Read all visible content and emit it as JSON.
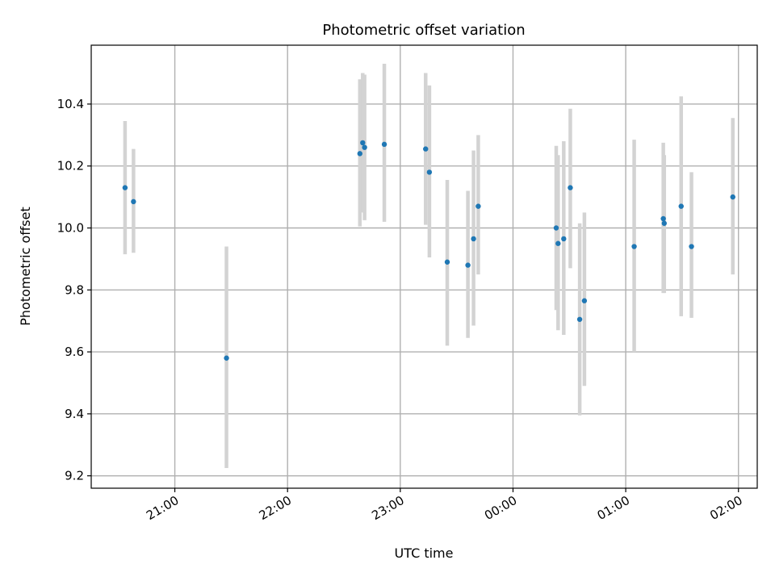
{
  "chart_data": {
    "type": "scatter",
    "title": "Photometric offset variation",
    "xlabel": "UTC time",
    "ylabel": "Photometric offset",
    "x_unit": "minutes since 20:00 UTC",
    "xlim": [
      15.5,
      370
    ],
    "ylim": [
      9.16,
      10.59
    ],
    "grid": true,
    "x_ticks": [
      {
        "value": 60,
        "label": "21:00"
      },
      {
        "value": 120,
        "label": "22:00"
      },
      {
        "value": 180,
        "label": "23:00"
      },
      {
        "value": 240,
        "label": "00:00"
      },
      {
        "value": 300,
        "label": "01:00"
      },
      {
        "value": 360,
        "label": "02:00"
      }
    ],
    "y_ticks": [
      {
        "value": 9.2,
        "label": "9.2"
      },
      {
        "value": 9.4,
        "label": "9.4"
      },
      {
        "value": 9.6,
        "label": "9.6"
      },
      {
        "value": 9.8,
        "label": "9.8"
      },
      {
        "value": 10.0,
        "label": "10.0"
      },
      {
        "value": 10.2,
        "label": "10.2"
      },
      {
        "value": 10.4,
        "label": "10.4"
      }
    ],
    "colors": {
      "point": "#1f77b4",
      "errorbar": "#d3d3d3",
      "grid": "#b0b0b0"
    },
    "points": [
      {
        "x": 33.5,
        "y": 10.13,
        "ylow": 9.915,
        "yhigh": 10.345
      },
      {
        "x": 38.0,
        "y": 10.085,
        "ylow": 9.92,
        "yhigh": 10.255
      },
      {
        "x": 87.5,
        "y": 9.58,
        "ylow": 9.225,
        "yhigh": 9.94
      },
      {
        "x": 158.5,
        "y": 10.24,
        "ylow": 10.005,
        "yhigh": 10.48
      },
      {
        "x": 160.0,
        "y": 10.275,
        "ylow": 10.05,
        "yhigh": 10.5
      },
      {
        "x": 161.0,
        "y": 10.26,
        "ylow": 10.025,
        "yhigh": 10.495
      },
      {
        "x": 171.5,
        "y": 10.27,
        "ylow": 10.02,
        "yhigh": 10.53
      },
      {
        "x": 193.5,
        "y": 10.255,
        "ylow": 10.01,
        "yhigh": 10.5
      },
      {
        "x": 195.5,
        "y": 10.18,
        "ylow": 9.905,
        "yhigh": 10.46
      },
      {
        "x": 205.0,
        "y": 9.89,
        "ylow": 9.62,
        "yhigh": 10.155
      },
      {
        "x": 216.0,
        "y": 9.88,
        "ylow": 9.645,
        "yhigh": 10.12
      },
      {
        "x": 219.0,
        "y": 9.965,
        "ylow": 9.685,
        "yhigh": 10.25
      },
      {
        "x": 221.5,
        "y": 10.07,
        "ylow": 9.85,
        "yhigh": 10.3
      },
      {
        "x": 263.0,
        "y": 10.0,
        "ylow": 9.735,
        "yhigh": 10.265
      },
      {
        "x": 264.0,
        "y": 9.95,
        "ylow": 9.67,
        "yhigh": 10.235
      },
      {
        "x": 267.0,
        "y": 9.965,
        "ylow": 9.655,
        "yhigh": 10.28
      },
      {
        "x": 270.5,
        "y": 10.13,
        "ylow": 9.87,
        "yhigh": 10.385
      },
      {
        "x": 275.5,
        "y": 9.705,
        "ylow": 9.395,
        "yhigh": 10.015
      },
      {
        "x": 278.0,
        "y": 9.765,
        "ylow": 9.49,
        "yhigh": 10.05
      },
      {
        "x": 304.5,
        "y": 9.94,
        "ylow": 9.6,
        "yhigh": 10.285
      },
      {
        "x": 320.0,
        "y": 10.03,
        "ylow": 9.79,
        "yhigh": 10.275
      },
      {
        "x": 320.5,
        "y": 10.015,
        "ylow": 9.79,
        "yhigh": 10.235
      },
      {
        "x": 329.5,
        "y": 10.07,
        "ylow": 9.715,
        "yhigh": 10.425
      },
      {
        "x": 335.0,
        "y": 9.94,
        "ylow": 9.71,
        "yhigh": 10.18
      },
      {
        "x": 357.0,
        "y": 10.1,
        "ylow": 9.85,
        "yhigh": 10.355
      }
    ]
  }
}
